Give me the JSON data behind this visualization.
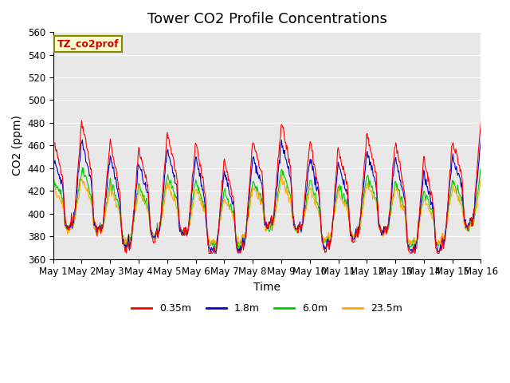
{
  "title": "Tower CO2 Profile Concentrations",
  "xlabel": "Time",
  "ylabel": "CO2 (ppm)",
  "ylim": [
    360,
    560
  ],
  "yticks": [
    360,
    380,
    400,
    420,
    440,
    460,
    480,
    500,
    520,
    540,
    560
  ],
  "series_colors": [
    "#ff0000",
    "#0000cc",
    "#00cc00",
    "#ffaa00"
  ],
  "series_labels": [
    "0.35m",
    "1.8m",
    "6.0m",
    "23.5m"
  ],
  "n_days": 15,
  "points_per_day": 48,
  "background_color": "#e8e8e8",
  "legend_box_color": "#ffffcc",
  "legend_box_edge": "#888800",
  "legend_text_color": "#cc0000",
  "annotation_text": "TZ_co2prof",
  "title_fontsize": 13,
  "axis_label_fontsize": 10,
  "tick_fontsize": 8.5
}
